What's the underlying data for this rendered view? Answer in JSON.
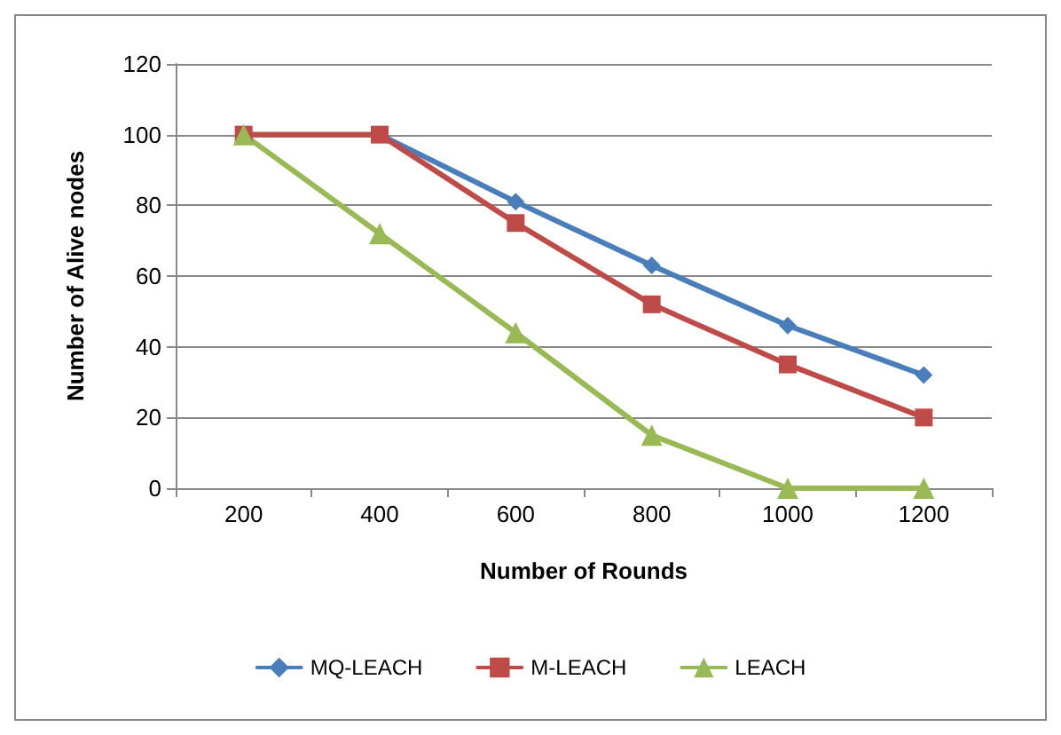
{
  "chart_data": {
    "type": "line",
    "xlabel": "Number of Rounds",
    "ylabel": "Number of Alive nodes",
    "categories": [
      "200",
      "400",
      "600",
      "800",
      "1000",
      "1200"
    ],
    "series": [
      {
        "name": "MQ-LEACH",
        "color": "#4a7ebb",
        "marker": "diamond",
        "values": [
          100,
          100,
          81,
          63,
          46,
          32
        ]
      },
      {
        "name": "M-LEACH",
        "color": "#be4b48",
        "marker": "square",
        "values": [
          100,
          100,
          75,
          52,
          35,
          20
        ]
      },
      {
        "name": "LEACH",
        "color": "#98b954",
        "marker": "triangle",
        "values": [
          100,
          72,
          44,
          15,
          0,
          0
        ]
      }
    ],
    "ylim": [
      0,
      120
    ],
    "yticks": [
      0,
      20,
      40,
      60,
      80,
      100,
      120
    ],
    "grid": "y",
    "legend": "bottom",
    "line_style": "solid"
  }
}
